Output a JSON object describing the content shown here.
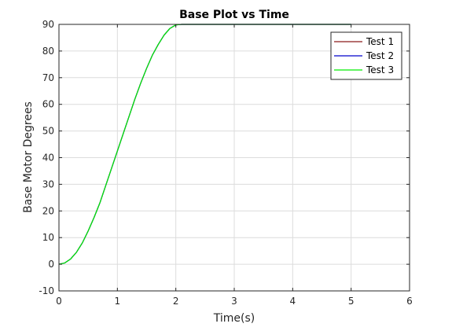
{
  "chart_data": {
    "type": "line",
    "title": "Base Plot vs Time",
    "xlabel": "Time(s)",
    "ylabel": "Base Motor Degrees",
    "xlim": [
      0,
      6
    ],
    "ylim": [
      -10,
      90
    ],
    "xticks": [
      0,
      1,
      2,
      3,
      4,
      5,
      6
    ],
    "yticks": [
      -10,
      0,
      10,
      20,
      30,
      40,
      50,
      60,
      70,
      80,
      90
    ],
    "grid": true,
    "legend": "top-right",
    "series": [
      {
        "name": "Test 1",
        "color": "#8b1a1a",
        "x": [
          0,
          0.1,
          0.2,
          0.3,
          0.4,
          0.5,
          0.6,
          0.7,
          0.8,
          0.9,
          1.0,
          1.1,
          1.2,
          1.3,
          1.4,
          1.5,
          1.6,
          1.7,
          1.8,
          1.9,
          2.0,
          2.1,
          2.5,
          3.0,
          3.5,
          4.0,
          4.5,
          5.0
        ],
        "y": [
          0,
          0.5,
          2,
          4.5,
          8,
          12.5,
          17.5,
          23,
          29.5,
          36,
          42.5,
          49,
          55.5,
          62,
          68,
          73.5,
          78.5,
          82.5,
          86,
          88.5,
          89.8,
          90,
          90,
          90,
          90,
          90,
          90,
          90
        ]
      },
      {
        "name": "Test 2",
        "color": "#0000cc",
        "x": [
          0,
          0.1,
          0.2,
          0.3,
          0.4,
          0.5,
          0.6,
          0.7,
          0.8,
          0.9,
          1.0,
          1.1,
          1.2,
          1.3,
          1.4,
          1.5,
          1.6,
          1.7,
          1.8,
          1.9,
          2.0,
          2.1,
          2.5,
          3.0,
          3.5,
          4.0,
          4.5,
          5.0
        ],
        "y": [
          0,
          0.5,
          2,
          4.5,
          8,
          12.5,
          17.5,
          23,
          29.5,
          36,
          42.5,
          49,
          55.5,
          62,
          68,
          73.5,
          78.5,
          82.5,
          86,
          88.5,
          89.8,
          90,
          90,
          90,
          90,
          90,
          90,
          90
        ]
      },
      {
        "name": "Test 3",
        "color": "#00ee00",
        "x": [
          0,
          0.1,
          0.2,
          0.3,
          0.4,
          0.5,
          0.6,
          0.7,
          0.8,
          0.9,
          1.0,
          1.1,
          1.2,
          1.3,
          1.4,
          1.5,
          1.6,
          1.7,
          1.8,
          1.9,
          2.0,
          2.1,
          2.5,
          3.0,
          3.5,
          4.0,
          4.5,
          5.0
        ],
        "y": [
          0,
          0.5,
          2,
          4.5,
          8,
          12.5,
          17.5,
          23,
          29.5,
          36,
          42.5,
          49,
          55.5,
          62,
          68,
          73.5,
          78.5,
          82.5,
          86,
          88.5,
          89.8,
          90,
          90,
          90,
          90,
          90,
          90,
          90
        ]
      }
    ]
  }
}
